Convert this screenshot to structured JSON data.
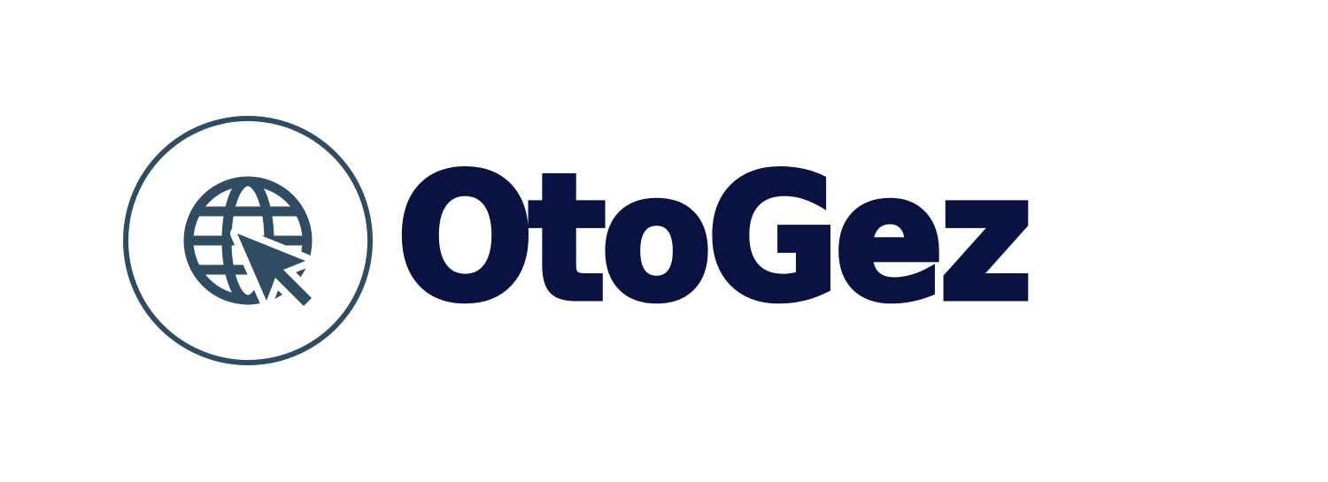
{
  "logo": {
    "icon": "globe-cursor-icon",
    "brand_name": "OtoGez",
    "colors": {
      "icon": "#2f4c60",
      "text": "#0a1242",
      "background": "#ffffff"
    }
  }
}
